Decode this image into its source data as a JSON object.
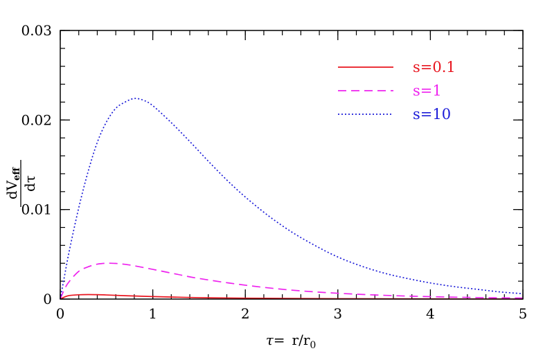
{
  "chart_data": {
    "type": "line",
    "title": "",
    "xlabel": {
      "prefix": "τ=",
      "main": "r/r",
      "sub": "0"
    },
    "ylabel": {
      "numerator": "dV",
      "numerator_sub": "eff",
      "denominator": "dτ"
    },
    "xlim": [
      0,
      5
    ],
    "ylim": [
      0,
      0.03
    ],
    "x_ticks": [
      {
        "value": 0,
        "label": "0"
      },
      {
        "value": 1,
        "label": "1"
      },
      {
        "value": 2,
        "label": "2"
      },
      {
        "value": 3,
        "label": "3"
      },
      {
        "value": 4,
        "label": "4"
      },
      {
        "value": 5,
        "label": "5"
      }
    ],
    "y_ticks": [
      {
        "value": 0,
        "label": "0"
      },
      {
        "value": 0.01,
        "label": "0.01"
      },
      {
        "value": 0.02,
        "label": "0.02"
      },
      {
        "value": 0.03,
        "label": "0.03"
      }
    ],
    "x_minor_step": 0.2,
    "y_minor_step": 0.002,
    "grid": false,
    "legend_position": "top-right",
    "series": [
      {
        "name": "s=0.1",
        "color": "#e8141e",
        "dash": "solid",
        "x": [
          0,
          0.05,
          0.1,
          0.2,
          0.3,
          0.4,
          0.5,
          0.7,
          1.0,
          1.5,
          2.0,
          3.0,
          4.0,
          5.0
        ],
        "y": [
          0,
          0.00025,
          0.0004,
          0.00048,
          0.0005,
          0.00049,
          0.00046,
          0.00038,
          0.00028,
          0.00016,
          0.0001,
          4e-05,
          2e-05,
          1e-05
        ]
      },
      {
        "name": "s=1",
        "color": "#ee22ee",
        "dash": "dashed",
        "x": [
          0,
          0.05,
          0.1,
          0.2,
          0.3,
          0.4,
          0.5,
          0.6,
          0.7,
          0.8,
          1.0,
          1.25,
          1.5,
          2.0,
          2.5,
          3.0,
          3.5,
          4.0,
          4.5,
          5.0
        ],
        "y": [
          0,
          0.0012,
          0.002,
          0.0031,
          0.0036,
          0.0039,
          0.004,
          0.00398,
          0.00388,
          0.00372,
          0.00332,
          0.0028,
          0.0023,
          0.00155,
          0.001,
          0.00065,
          0.00042,
          0.00027,
          0.00017,
          0.00011
        ]
      },
      {
        "name": "s=10",
        "color": "#1b1bd8",
        "dash": "dotted",
        "x": [
          0,
          0.05,
          0.1,
          0.2,
          0.3,
          0.4,
          0.5,
          0.6,
          0.7,
          0.8,
          0.9,
          1.0,
          1.2,
          1.4,
          1.6,
          1.8,
          2.0,
          2.25,
          2.5,
          2.75,
          3.0,
          3.25,
          3.5,
          3.75,
          4.0,
          4.25,
          4.5,
          4.75,
          5.0
        ],
        "y": [
          0,
          0.0028,
          0.0055,
          0.0102,
          0.0142,
          0.0175,
          0.0198,
          0.0213,
          0.022,
          0.0224,
          0.0222,
          0.0216,
          0.0197,
          0.0176,
          0.0154,
          0.0133,
          0.0114,
          0.0093,
          0.0075,
          0.006,
          0.0047,
          0.0037,
          0.0029,
          0.0023,
          0.0018,
          0.0014,
          0.0011,
          0.0008,
          0.0006
        ]
      }
    ]
  }
}
